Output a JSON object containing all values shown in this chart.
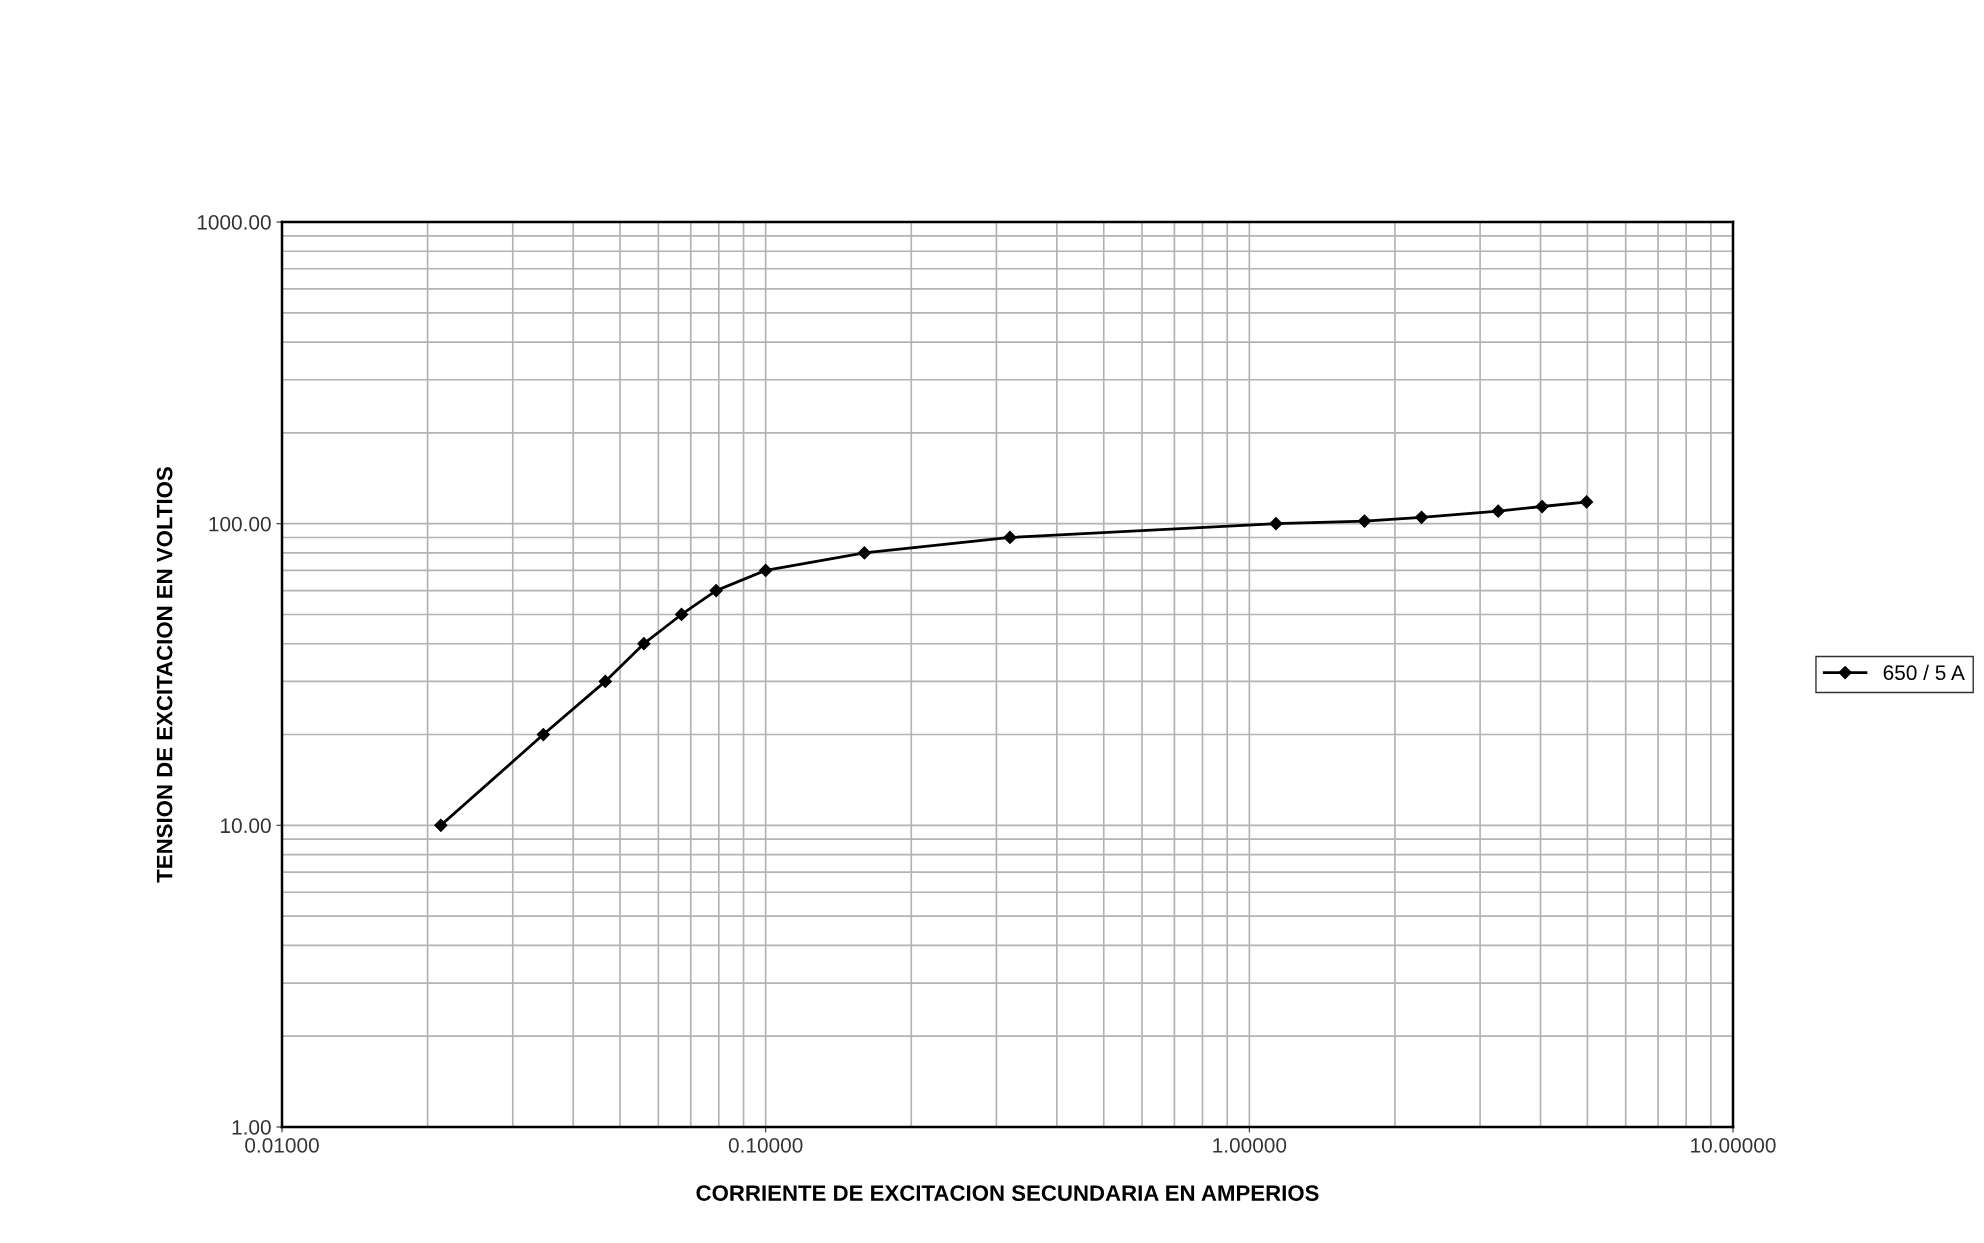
{
  "chart_data": {
    "type": "line",
    "xlabel": "CORRIENTE DE EXCITACION SECUNDARIA EN AMPERIOS",
    "ylabel": "TENSION DE EXCITACION EN VOLTIOS",
    "log": "xy",
    "grid": true,
    "legend": "right",
    "marker": "diamond",
    "line_style": "solid",
    "xlim": [
      0.01,
      10
    ],
    "ylim": [
      1,
      1000
    ],
    "xticks": [
      {
        "value": 0.01,
        "label": "0.01000"
      },
      {
        "value": 0.1,
        "label": "0.10000"
      },
      {
        "value": 1,
        "label": "1.00000"
      },
      {
        "value": 10,
        "label": "10.00000"
      }
    ],
    "yticks": [
      {
        "value": 1,
        "label": "1.00"
      },
      {
        "value": 10,
        "label": "10.00"
      },
      {
        "value": 100,
        "label": "100.00"
      },
      {
        "value": 1000,
        "label": "1000.00"
      }
    ],
    "series": [
      {
        "name": "650 / 5 A",
        "color": "#000000",
        "x": [
          0.0213,
          0.0347,
          0.0466,
          0.056,
          0.067,
          0.079,
          0.1,
          0.16,
          0.32,
          1.135,
          1.73,
          2.27,
          3.27,
          4.03,
          4.98
        ],
        "values": [
          10,
          20,
          30,
          40,
          50,
          60,
          70,
          80,
          90,
          100,
          102,
          105,
          110,
          114,
          118
        ]
      }
    ]
  }
}
